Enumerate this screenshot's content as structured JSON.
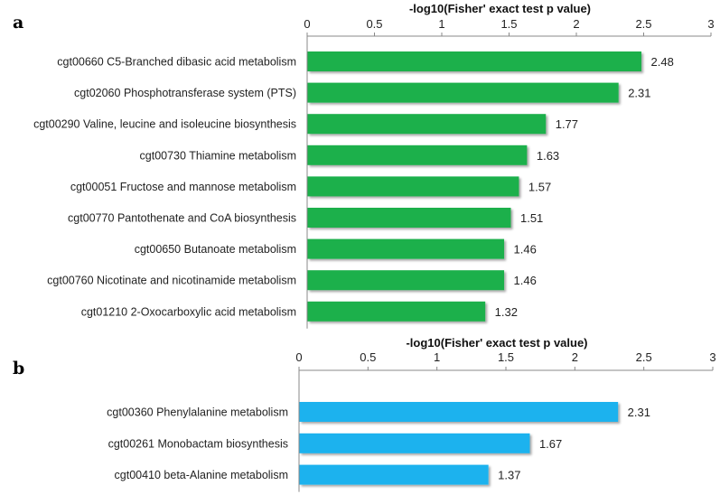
{
  "chart_data": [
    {
      "type": "bar",
      "orientation": "horizontal",
      "panel": "a",
      "title": "-log10(Fisher' exact test p value)",
      "categories": [
        "cgt00660 C5-Branched dibasic acid metabolism",
        "cgt02060 Phosphotransferase system (PTS)",
        "cgt00290 Valine, leucine and isoleucine biosynthesis",
        "cgt00730 Thiamine metabolism",
        "cgt00051 Fructose and mannose metabolism",
        "cgt00770 Pantothenate and CoA biosynthesis",
        "cgt00650 Butanoate metabolism",
        "cgt00760 Nicotinate and nicotinamide metabolism",
        "cgt01210 2-Oxocarboxylic acid metabolism"
      ],
      "values": [
        2.48,
        2.31,
        1.77,
        1.63,
        1.57,
        1.51,
        1.46,
        1.46,
        1.32
      ],
      "value_labels": [
        "2.48",
        "2.31",
        "1.77",
        "1.63",
        "1.57",
        "1.51",
        "1.46",
        "1.46",
        "1.32"
      ],
      "xlim": [
        0,
        3
      ],
      "ticks": [
        0,
        0.5,
        1,
        1.5,
        2,
        2.5,
        3
      ],
      "tick_labels": [
        "0",
        "0.5",
        "1",
        "1.5",
        "2",
        "2.5",
        "3"
      ],
      "axis_position": "top",
      "grid": false,
      "bar_color": "#1db04b"
    },
    {
      "type": "bar",
      "orientation": "horizontal",
      "panel": "b",
      "title": "-log10(Fisher' exact test p value)",
      "categories": [
        "cgt00360 Phenylalanine metabolism",
        "cgt00261 Monobactam biosynthesis",
        "cgt00410 beta-Alanine metabolism"
      ],
      "values": [
        2.31,
        1.67,
        1.37
      ],
      "value_labels": [
        "2.31",
        "1.67",
        "1.37"
      ],
      "xlim": [
        0,
        3
      ],
      "ticks": [
        0,
        0.5,
        1,
        1.5,
        2,
        2.5,
        3
      ],
      "tick_labels": [
        "0",
        "0.5",
        "1",
        "1.5",
        "2",
        "2.5",
        "3"
      ],
      "axis_position": "top",
      "grid": false,
      "bar_color": "#1ab2ee"
    }
  ]
}
